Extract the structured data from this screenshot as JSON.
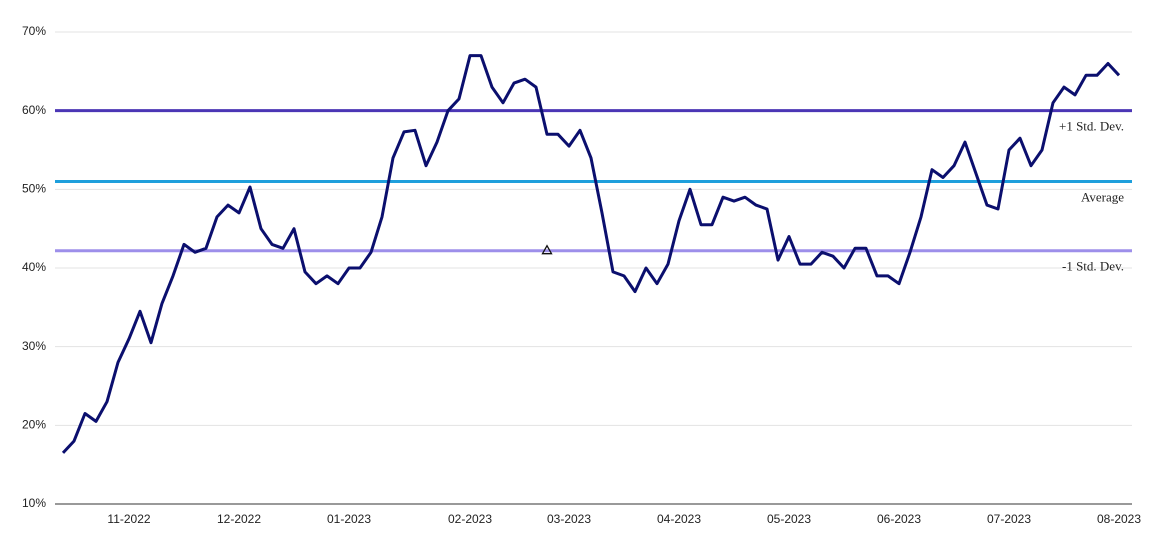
{
  "chart_data": {
    "type": "line",
    "categories": [
      null,
      null,
      null,
      null,
      null,
      null,
      "11-2022",
      null,
      null,
      null,
      null,
      null,
      null,
      null,
      null,
      null,
      "12-2022",
      null,
      null,
      null,
      null,
      null,
      null,
      null,
      null,
      null,
      "01-2023",
      null,
      null,
      null,
      null,
      null,
      null,
      null,
      null,
      null,
      null,
      "02-2023",
      null,
      null,
      null,
      null,
      null,
      null,
      null,
      null,
      "03-2023",
      null,
      null,
      null,
      null,
      null,
      null,
      null,
      null,
      null,
      "04-2023",
      null,
      null,
      null,
      null,
      null,
      null,
      null,
      null,
      null,
      "05-2023",
      null,
      null,
      null,
      null,
      null,
      null,
      null,
      null,
      null,
      "06-2023",
      null,
      null,
      null,
      null,
      null,
      null,
      null,
      null,
      null,
      "07-2023",
      null,
      null,
      null,
      null,
      null,
      null,
      null,
      null,
      null,
      "08-2023"
    ],
    "series": [
      {
        "color": "#0b0f6e",
        "values": [
          16.5,
          18,
          21.5,
          20.5,
          23,
          28,
          31,
          34.5,
          30.5,
          35.5,
          39,
          43,
          42,
          42.5,
          46.5,
          48,
          47,
          50.3,
          45,
          43,
          42.5,
          45,
          39.5,
          38,
          39,
          38,
          40,
          40,
          42,
          46.5,
          54,
          57.3,
          57.5,
          53,
          56,
          60,
          61.5,
          67,
          67,
          63,
          61,
          63.5,
          64,
          63,
          57,
          57,
          55.5,
          57.5,
          54,
          47,
          39.5,
          39,
          37,
          40,
          38,
          40.5,
          46,
          50,
          45.5,
          45.5,
          49,
          48.5,
          49,
          48,
          47.5,
          41,
          44,
          40.5,
          40.5,
          42,
          41.5,
          40,
          42.5,
          42.5,
          39,
          39,
          38,
          42,
          46.5,
          52.5,
          51.5,
          53,
          56,
          52,
          48,
          47.5,
          55,
          56.5,
          53,
          55,
          61,
          63,
          62,
          64.5,
          64.5,
          66,
          64.5
        ]
      }
    ],
    "reference_lines": [
      {
        "name": "+1 Std. Dev.",
        "value": 60,
        "color": "#4b36b5"
      },
      {
        "name": "Average",
        "value": 51,
        "color": "#1e9fdc"
      },
      {
        "name": "-1 Std. Dev.",
        "value": 42.2,
        "color": "#9d8fea"
      }
    ],
    "ylim": [
      10,
      70
    ],
    "yticks": [
      {
        "value": 10,
        "label": "10%"
      },
      {
        "value": 20,
        "label": "20%"
      },
      {
        "value": 30,
        "label": "30%"
      },
      {
        "value": 40,
        "label": "40%"
      },
      {
        "value": 50,
        "label": "50%"
      },
      {
        "value": 60,
        "label": "60%"
      },
      {
        "value": 70,
        "label": "70%"
      }
    ],
    "grid": true
  }
}
